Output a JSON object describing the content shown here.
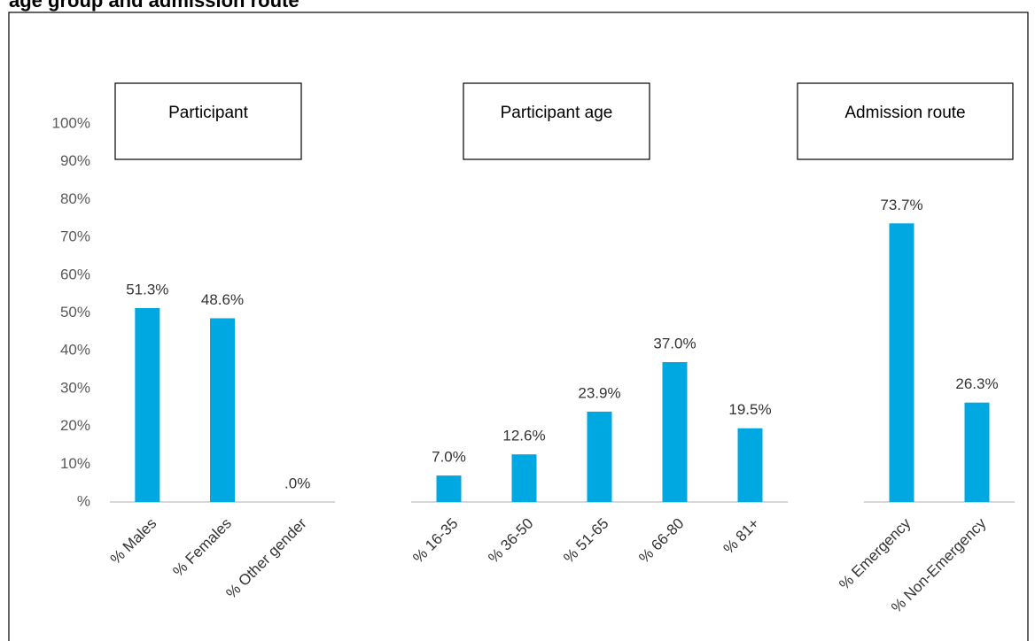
{
  "chart_data": {
    "type": "bar",
    "title": "age group and admission route",
    "color": "#00a8e1",
    "ylim": [
      0,
      100
    ],
    "yticks": [
      {
        "value": 0,
        "label": "%"
      },
      {
        "value": 10,
        "label": "10%"
      },
      {
        "value": 20,
        "label": "20%"
      },
      {
        "value": 30,
        "label": "30%"
      },
      {
        "value": 40,
        "label": "40%"
      },
      {
        "value": 50,
        "label": "50%"
      },
      {
        "value": 60,
        "label": "60%"
      },
      {
        "value": 70,
        "label": "70%"
      },
      {
        "value": 80,
        "label": "80%"
      },
      {
        "value": 90,
        "label": "90%"
      },
      {
        "value": 100,
        "label": "100%"
      }
    ],
    "panels": [
      {
        "name": "Participant",
        "categories": [
          "% Males",
          "% Females",
          "% Other gender"
        ],
        "values": [
          51.3,
          48.6,
          0
        ],
        "value_labels": [
          "51.3%",
          "48.6%",
          ".0%"
        ]
      },
      {
        "name": "Participant age",
        "categories": [
          "% 16-35",
          "% 36-50",
          "% 51-65",
          "% 66-80",
          "% 81+"
        ],
        "values": [
          7.0,
          12.6,
          23.9,
          37.0,
          19.5
        ],
        "value_labels": [
          "7.0%",
          "12.6%",
          "23.9%",
          "37.0%",
          "19.5%"
        ]
      },
      {
        "name": "Admission route",
        "categories": [
          "% Emergency",
          "% Non-Emergency"
        ],
        "values": [
          73.7,
          26.3
        ],
        "value_labels": [
          "73.7%",
          "26.3%"
        ]
      }
    ]
  }
}
